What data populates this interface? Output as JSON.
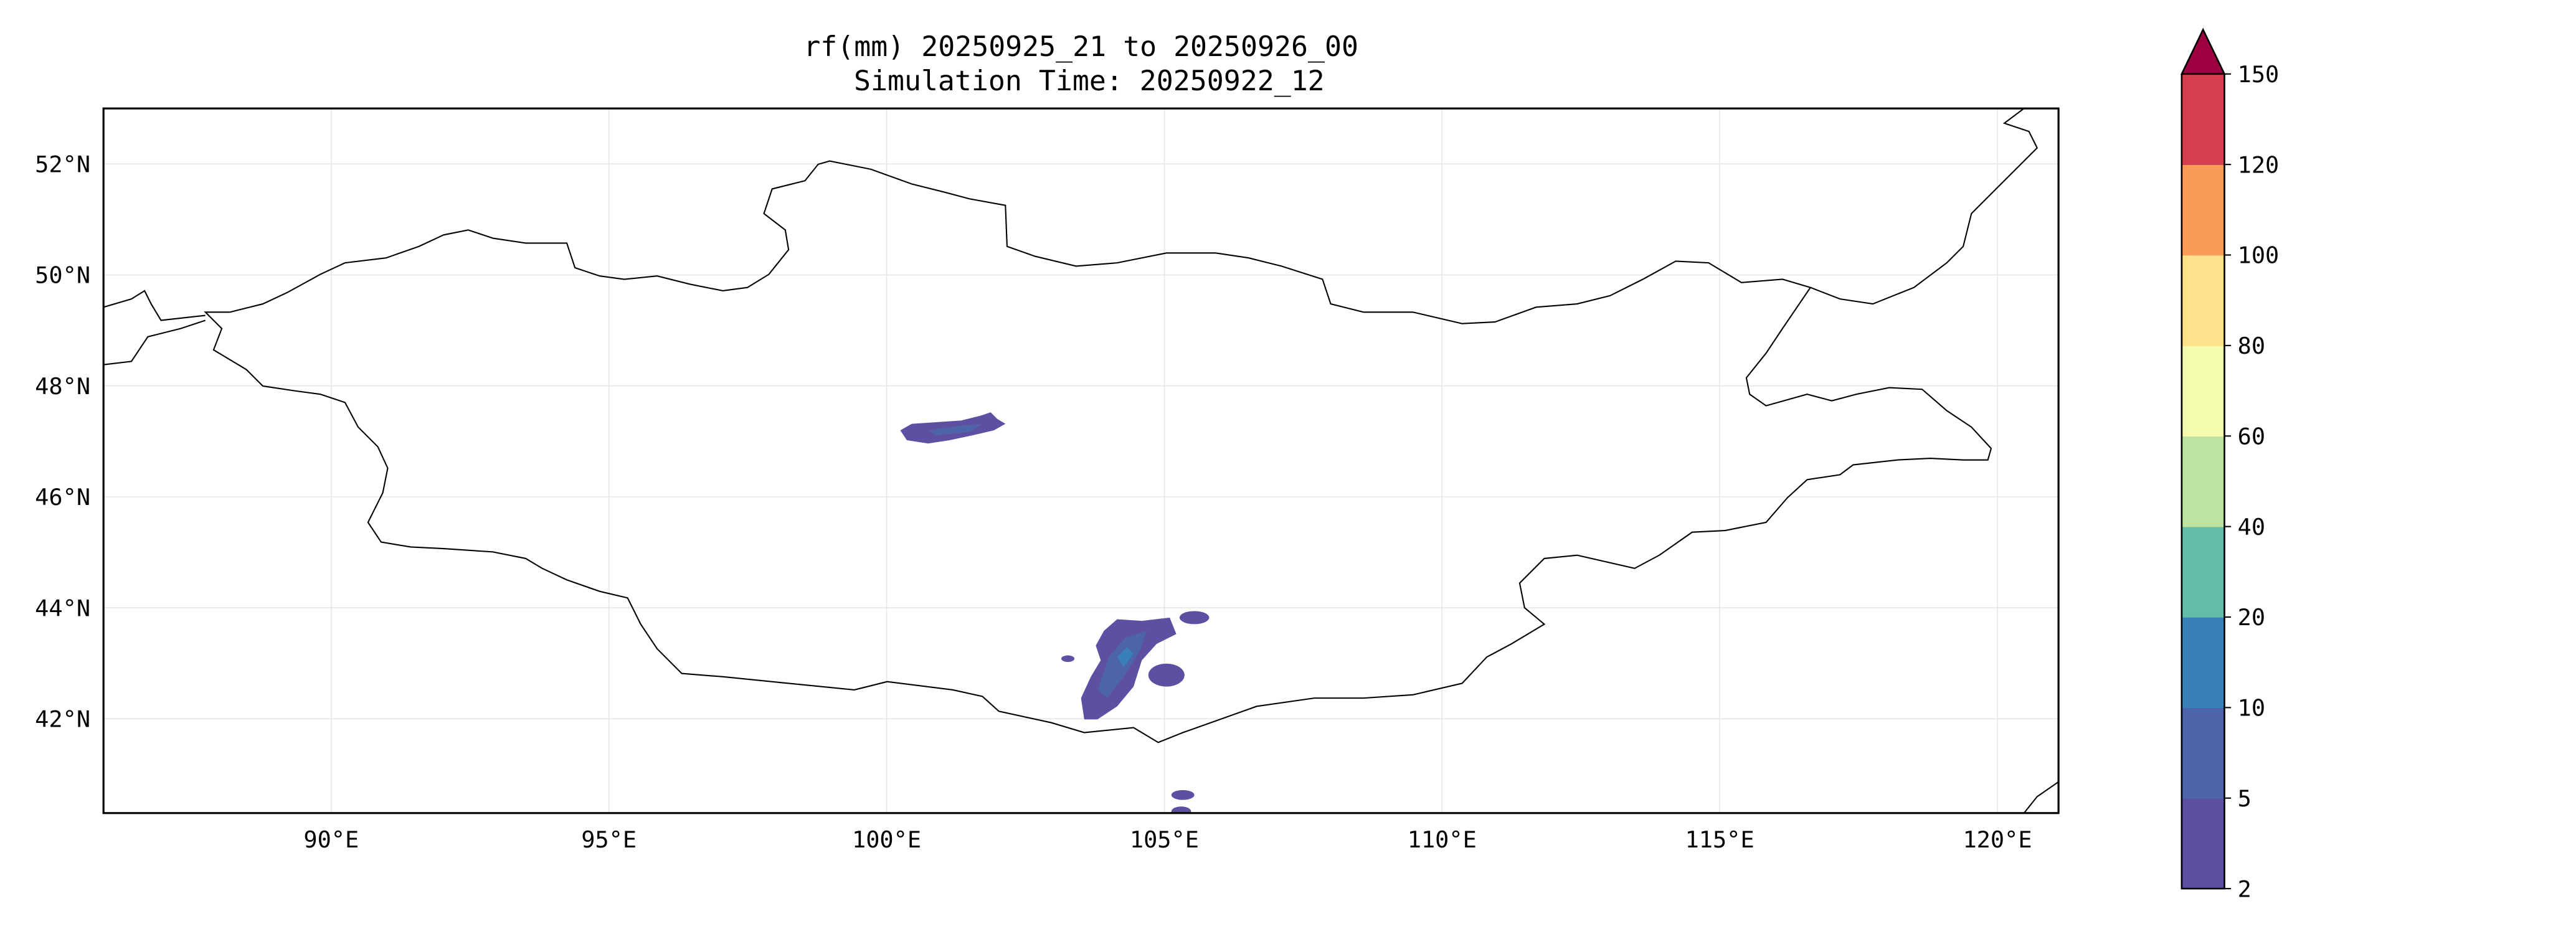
{
  "chart_data": {
    "type": "heatmap",
    "title": "rf(mm) 20250925_21 to 20250926_00",
    "subtitle": "Simulation Time: 20250922_12",
    "xlabel": "",
    "ylabel": "",
    "xlim": [
      85.9,
      121.1
    ],
    "ylim": [
      40.3,
      53.0
    ],
    "grid": true,
    "x_ticks": [
      90,
      95,
      100,
      105,
      110,
      115,
      120
    ],
    "x_tick_labels": [
      "90°E",
      "95°E",
      "100°E",
      "105°E",
      "110°E",
      "115°E",
      "120°E"
    ],
    "y_ticks": [
      42,
      44,
      46,
      48,
      50,
      52
    ],
    "y_tick_labels": [
      "42°N",
      "44°N",
      "46°N",
      "48°N",
      "50°N",
      "52°N"
    ],
    "colorbar": {
      "placement": "right",
      "levels": [
        2,
        5,
        10,
        20,
        40,
        60,
        80,
        100,
        120,
        150
      ],
      "labels": [
        "2",
        "5",
        "10",
        "20",
        "40",
        "60",
        "80",
        "100",
        "120",
        "150"
      ],
      "colors": [
        "#5e4fa2",
        "#4e64aa",
        "#3880b8",
        "#62bca8",
        "#bce4a0",
        "#f5fbae",
        "#fde18b",
        "#fa9b58",
        "#d53e4f"
      ],
      "extend_color": "#9e0142",
      "extend": "max"
    },
    "rain_areas": [
      {
        "region": "central Mongolia near 101-102°E, 47.2°N",
        "level_range": "2-10 mm"
      },
      {
        "region": "southern Gobi near 104-105°E, 42-44°N",
        "level_range": "2-20 mm"
      }
    ]
  }
}
